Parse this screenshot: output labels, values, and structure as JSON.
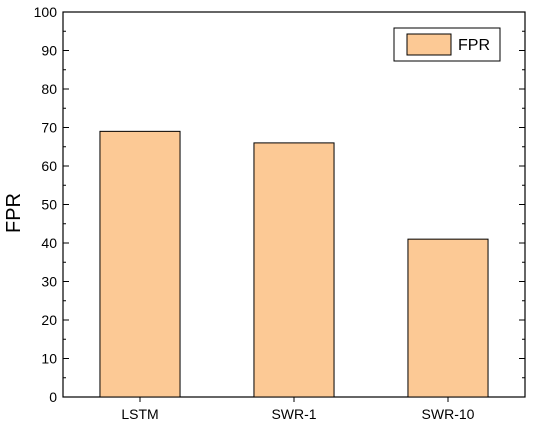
{
  "chart_data": {
    "type": "bar",
    "categories": [
      "LSTM",
      "SWR-1",
      "SWR-10"
    ],
    "series": [
      {
        "name": "FPR",
        "values": [
          69,
          66,
          41
        ]
      }
    ],
    "ylabel": "FPR",
    "xlabel": "",
    "ylim": [
      0,
      100
    ],
    "yticks": [
      0,
      10,
      20,
      30,
      40,
      50,
      60,
      70,
      80,
      90,
      100
    ],
    "legend": "top-right",
    "grid": false,
    "colors": {
      "bar_fill": "#FCC995",
      "bar_stroke": "#000000",
      "axis": "#000000"
    }
  }
}
